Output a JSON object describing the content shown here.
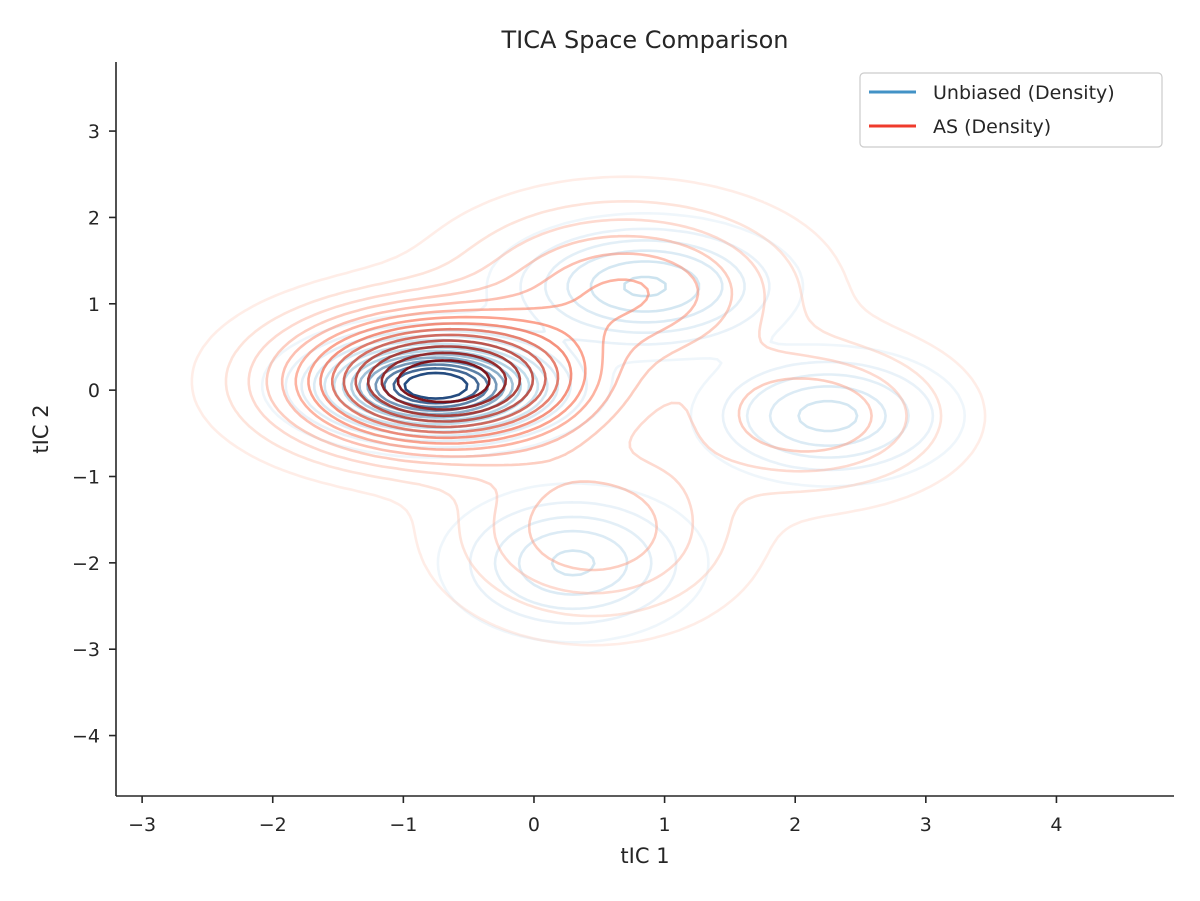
{
  "chart_data": {
    "type": "contour",
    "title": "TICA Space Comparison",
    "xlabel": "tIC 1",
    "ylabel": "tIC 2",
    "xlim": [
      -3.2,
      4.9
    ],
    "ylim": [
      -4.7,
      3.8
    ],
    "xticks": [
      -3,
      -2,
      -1,
      0,
      1,
      2,
      3,
      4
    ],
    "yticks": [
      -4,
      -3,
      -2,
      -1,
      0,
      1,
      2,
      3
    ],
    "xtick_labels": [
      "−3",
      "−2",
      "−1",
      "0",
      "1",
      "2",
      "3",
      "4"
    ],
    "ytick_labels": [
      "−4",
      "−3",
      "−2",
      "−1",
      "0",
      "1",
      "2",
      "3"
    ],
    "grid": false,
    "legend_position": "top-right",
    "series": [
      {
        "name": "Unbiased (Density)",
        "color": "#4292c6",
        "colormap": "Blues",
        "components": [
          {
            "mean": [
              -0.75,
              0.05
            ],
            "sd": [
              0.45,
              0.28
            ],
            "weight": 0.55
          },
          {
            "mean": [
              0.85,
              1.2
            ],
            "sd": [
              0.5,
              0.35
            ],
            "weight": 0.18
          },
          {
            "mean": [
              0.3,
              -2.0
            ],
            "sd": [
              0.45,
              0.4
            ],
            "weight": 0.14
          },
          {
            "mean": [
              2.25,
              -0.3
            ],
            "sd": [
              0.45,
              0.35
            ],
            "weight": 0.13
          }
        ]
      },
      {
        "name": "AS (Density)",
        "color": "#ef3b2c",
        "colormap": "Reds",
        "components": [
          {
            "mean": [
              -0.7,
              0.1
            ],
            "sd": [
              0.65,
              0.45
            ],
            "weight": 0.6
          },
          {
            "mean": [
              0.7,
              1.15
            ],
            "sd": [
              0.7,
              0.55
            ],
            "weight": 0.18
          },
          {
            "mean": [
              0.45,
              -1.6
            ],
            "sd": [
              0.6,
              0.6
            ],
            "weight": 0.12
          },
          {
            "mean": [
              2.1,
              -0.3
            ],
            "sd": [
              0.6,
              0.5
            ],
            "weight": 0.1
          }
        ]
      }
    ]
  }
}
